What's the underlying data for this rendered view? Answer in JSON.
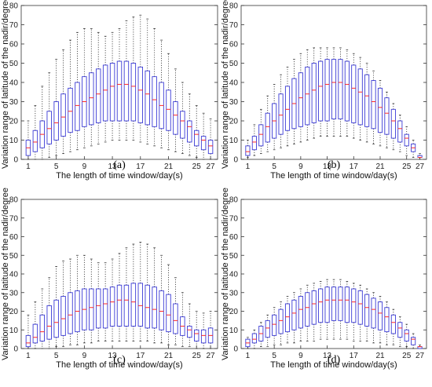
{
  "figure": {
    "panels": [
      {
        "caption": "(a)",
        "chart_data": {
          "type": "boxplot",
          "xlabel": "The length of time window/day(s)",
          "ylabel": "Variation range of latitude of the nadir/degree",
          "ylim": [
            0,
            80
          ],
          "xlim": [
            0,
            28
          ],
          "yticks": [
            0,
            10,
            20,
            30,
            40,
            50,
            60,
            70,
            80
          ],
          "xtick_labels": [
            "1",
            "5",
            "9",
            "13",
            "17",
            "21",
            "25",
            "27"
          ],
          "grid": false,
          "x": [
            1,
            2,
            3,
            4,
            5,
            6,
            7,
            8,
            9,
            10,
            11,
            12,
            13,
            14,
            15,
            16,
            17,
            18,
            19,
            20,
            21,
            22,
            23,
            24,
            25,
            26,
            27
          ],
          "q1": [
            2,
            4,
            6,
            8,
            10,
            12,
            14,
            15,
            17,
            18,
            19,
            20,
            20,
            20,
            20,
            20,
            19,
            18,
            17,
            16,
            15,
            13,
            11,
            9,
            7,
            5,
            3
          ],
          "median": [
            6,
            9,
            13,
            16,
            19,
            22,
            25,
            28,
            30,
            32,
            34,
            36,
            38,
            39,
            39,
            38,
            36,
            34,
            31,
            28,
            26,
            23,
            20,
            17,
            13,
            10,
            7
          ],
          "q3": [
            10,
            15,
            20,
            25,
            30,
            34,
            37,
            40,
            43,
            45,
            47,
            49,
            50,
            51,
            51,
            50,
            48,
            46,
            43,
            40,
            36,
            30,
            25,
            20,
            15,
            12,
            10
          ],
          "whisker_low": [
            0,
            0,
            0,
            1,
            2,
            3,
            4,
            5,
            6,
            7,
            8,
            9,
            10,
            10,
            10,
            10,
            9,
            8,
            7,
            6,
            5,
            4,
            3,
            2,
            1,
            0,
            0
          ],
          "whisker_high": [
            20,
            28,
            38,
            45,
            52,
            57,
            62,
            66,
            68,
            68,
            66,
            64,
            66,
            68,
            72,
            74,
            75,
            73,
            68,
            62,
            55,
            47,
            40,
            34,
            28,
            24,
            21
          ]
        }
      },
      {
        "caption": "(b)",
        "chart_data": {
          "type": "boxplot",
          "xlabel": "The length of time window/day(s)",
          "ylabel": "Variation range of latitude of the nadir/degree",
          "ylim": [
            0,
            80
          ],
          "xlim": [
            0,
            28
          ],
          "yticks": [
            0,
            10,
            20,
            30,
            40,
            50,
            60,
            70,
            80
          ],
          "xtick_labels": [
            "1",
            "5",
            "9",
            "13",
            "17",
            "21",
            "25",
            "27"
          ],
          "grid": false,
          "x": [
            1,
            2,
            3,
            4,
            5,
            6,
            7,
            8,
            9,
            10,
            11,
            12,
            13,
            14,
            15,
            16,
            17,
            18,
            19,
            20,
            21,
            22,
            23,
            24,
            25,
            26,
            27
          ],
          "q1": [
            2,
            5,
            7,
            9,
            11,
            13,
            15,
            16,
            17,
            18,
            19,
            20,
            20,
            21,
            21,
            20,
            19,
            18,
            17,
            16,
            14,
            13,
            11,
            9,
            7,
            4,
            1
          ],
          "median": [
            4,
            9,
            13,
            17,
            20,
            23,
            26,
            29,
            32,
            34,
            36,
            38,
            39,
            40,
            40,
            39,
            37,
            35,
            33,
            30,
            27,
            24,
            20,
            16,
            11,
            6,
            1
          ],
          "q3": [
            7,
            12,
            18,
            24,
            29,
            34,
            38,
            42,
            45,
            48,
            50,
            51,
            52,
            52,
            52,
            51,
            49,
            47,
            44,
            41,
            37,
            32,
            26,
            20,
            13,
            8,
            2
          ],
          "whisker_low": [
            1,
            2,
            3,
            4,
            5,
            6,
            7,
            8,
            9,
            10,
            11,
            12,
            12,
            12,
            12,
            12,
            11,
            10,
            9,
            8,
            7,
            6,
            5,
            4,
            2,
            1,
            0
          ],
          "whisker_high": [
            10,
            18,
            26,
            33,
            39,
            44,
            48,
            52,
            55,
            57,
            58,
            58,
            58,
            58,
            58,
            57,
            55,
            53,
            50,
            46,
            41,
            35,
            29,
            23,
            17,
            10,
            3
          ]
        }
      },
      {
        "caption": "(c)",
        "chart_data": {
          "type": "boxplot",
          "xlabel": "The length of time window/day(s)",
          "ylabel": "Variation range of latitude of the nadir/degree",
          "ylim": [
            0,
            80
          ],
          "xlim": [
            0,
            28
          ],
          "yticks": [
            0,
            10,
            20,
            30,
            40,
            50,
            60,
            70,
            80
          ],
          "xtick_labels": [
            "1",
            "5",
            "9",
            "13",
            "17",
            "21",
            "25",
            "27"
          ],
          "grid": false,
          "x": [
            1,
            2,
            3,
            4,
            5,
            6,
            7,
            8,
            9,
            10,
            11,
            12,
            13,
            14,
            15,
            16,
            17,
            18,
            19,
            20,
            21,
            22,
            23,
            24,
            25,
            26,
            27
          ],
          "q1": [
            1,
            3,
            4,
            5,
            6,
            7,
            8,
            9,
            10,
            10,
            11,
            11,
            12,
            12,
            12,
            12,
            12,
            11,
            11,
            10,
            9,
            8,
            7,
            6,
            4,
            3,
            3
          ],
          "median": [
            3,
            6,
            9,
            12,
            14,
            16,
            18,
            20,
            21,
            22,
            23,
            24,
            25,
            26,
            26,
            25,
            23,
            22,
            21,
            20,
            18,
            15,
            12,
            10,
            8,
            7,
            7
          ],
          "q3": [
            7,
            13,
            18,
            23,
            26,
            28,
            30,
            31,
            32,
            32,
            32,
            32,
            33,
            34,
            34,
            35,
            35,
            34,
            33,
            31,
            29,
            24,
            17,
            12,
            10,
            10,
            11
          ],
          "whisker_low": [
            0,
            0,
            0,
            0,
            1,
            1,
            2,
            2,
            3,
            3,
            4,
            4,
            4,
            4,
            4,
            4,
            4,
            4,
            3,
            3,
            2,
            2,
            1,
            1,
            0,
            0,
            0
          ],
          "whisker_high": [
            18,
            25,
            32,
            38,
            44,
            47,
            48,
            50,
            50,
            48,
            46,
            46,
            48,
            51,
            54,
            56,
            57,
            56,
            54,
            50,
            45,
            38,
            30,
            24,
            20,
            19,
            20
          ]
        }
      },
      {
        "caption": "(d)",
        "chart_data": {
          "type": "boxplot",
          "xlabel": "The length of time window/day(s)",
          "ylabel": "Variation range of latitude of the nadir/degree",
          "ylim": [
            0,
            80
          ],
          "xlim": [
            0,
            28
          ],
          "yticks": [
            0,
            10,
            20,
            30,
            40,
            50,
            60,
            70,
            80
          ],
          "xtick_labels": [
            "1",
            "5",
            "9",
            "13",
            "17",
            "21",
            "25",
            "27"
          ],
          "grid": false,
          "x": [
            1,
            2,
            3,
            4,
            5,
            6,
            7,
            8,
            9,
            10,
            11,
            12,
            13,
            14,
            15,
            16,
            17,
            18,
            19,
            20,
            21,
            22,
            23,
            24,
            25,
            26,
            27
          ],
          "q1": [
            1,
            3,
            4,
            6,
            7,
            8,
            9,
            10,
            11,
            12,
            13,
            14,
            14,
            15,
            15,
            14,
            14,
            13,
            12,
            11,
            10,
            9,
            8,
            6,
            4,
            2,
            0
          ],
          "median": [
            3,
            5,
            8,
            11,
            13,
            15,
            17,
            19,
            21,
            22,
            24,
            25,
            26,
            26,
            26,
            26,
            25,
            24,
            22,
            21,
            19,
            17,
            14,
            11,
            8,
            5,
            1
          ],
          "q3": [
            5,
            8,
            12,
            15,
            18,
            21,
            24,
            26,
            28,
            30,
            31,
            32,
            33,
            33,
            33,
            33,
            32,
            31,
            29,
            27,
            25,
            22,
            18,
            14,
            10,
            6,
            1
          ],
          "whisker_low": [
            0,
            0,
            1,
            1,
            2,
            2,
            3,
            3,
            4,
            4,
            4,
            5,
            5,
            5,
            5,
            5,
            4,
            4,
            4,
            3,
            3,
            2,
            2,
            1,
            1,
            0,
            0
          ],
          "whisker_high": [
            6,
            10,
            14,
            18,
            22,
            25,
            28,
            30,
            32,
            34,
            35,
            36,
            37,
            37,
            37,
            36,
            35,
            34,
            32,
            30,
            28,
            25,
            21,
            17,
            13,
            8,
            2
          ]
        }
      }
    ]
  },
  "colors": {
    "box": "#3b3bd6",
    "median": "#ff2a2a",
    "whisker": "#333333",
    "axis": "#333333",
    "text": "#111111"
  }
}
